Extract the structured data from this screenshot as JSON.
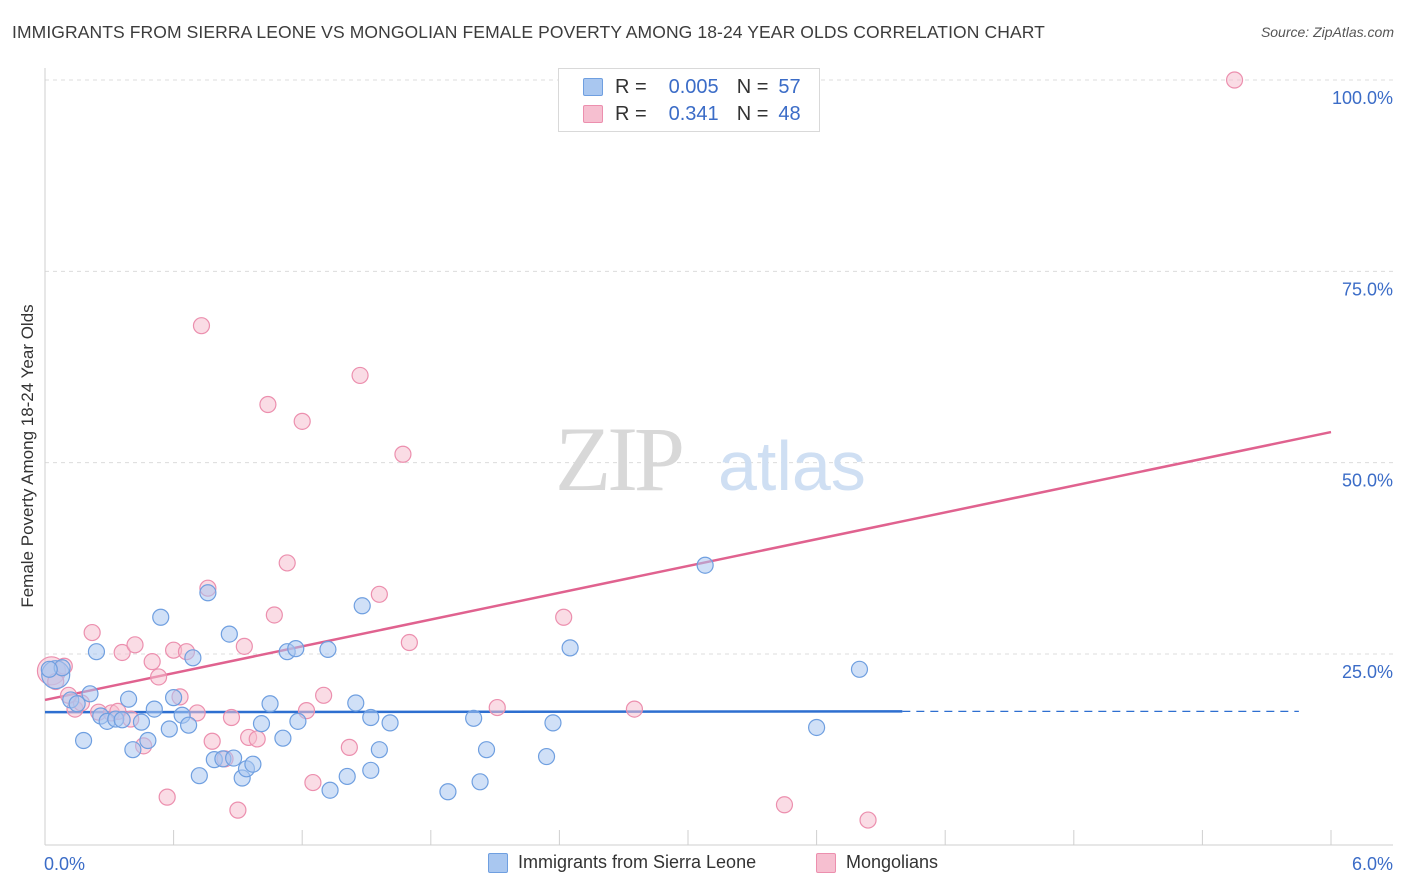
{
  "title": "IMMIGRANTS FROM SIERRA LEONE VS MONGOLIAN FEMALE POVERTY AMONG 18-24 YEAR OLDS CORRELATION CHART",
  "source": "Source: ZipAtlas.com",
  "watermark": {
    "zip": "ZIP",
    "atlas": "atlas"
  },
  "colors": {
    "blue_fill": "#a9c7f0",
    "blue_stroke": "#6f9fe0",
    "blue_line": "#2e6fd0",
    "pink_fill": "#f6bfd0",
    "pink_stroke": "#ec8fae",
    "pink_line": "#e0628f",
    "axis_label": "#3b6cc7",
    "grid": "#dcdcdc"
  },
  "legend": {
    "r_label": "R =",
    "n_label": "N =",
    "series": [
      {
        "r": "0.005",
        "n": "57"
      },
      {
        "r": "0.341",
        "n": "48"
      }
    ]
  },
  "bottom_legend": {
    "items": [
      "Immigrants from Sierra Leone",
      "Mongolians"
    ]
  },
  "chart_data": {
    "type": "scatter",
    "title": "IMMIGRANTS FROM SIERRA LEONE VS MONGOLIAN FEMALE POVERTY AMONG 18-24 YEAR OLDS CORRELATION CHART",
    "xlabel": "",
    "ylabel": "Female Poverty Among 18-24 Year Olds",
    "xlim": [
      0,
      6
    ],
    "ylim": [
      0,
      100
    ],
    "x_tick_labels": [
      "0.0%",
      "6.0%"
    ],
    "y_tick_values": [
      25,
      50,
      75,
      100
    ],
    "y_tick_labels": [
      "25.0%",
      "50.0%",
      "75.0%",
      "100.0%"
    ],
    "series": [
      {
        "name": "Immigrants from Sierra Leone",
        "r": 0.005,
        "n": 57,
        "trend": {
          "x0": 0.0,
          "y0": 17.4,
          "x1": 4.0,
          "y1": 17.5,
          "dashed_to_x": 5.85
        },
        "points": [
          {
            "x": 0.05,
            "y": 22.3,
            "big": true
          },
          {
            "x": 0.08,
            "y": 23.2
          },
          {
            "x": 0.12,
            "y": 19.0
          },
          {
            "x": 0.15,
            "y": 18.5
          },
          {
            "x": 0.18,
            "y": 13.7
          },
          {
            "x": 0.21,
            "y": 19.8
          },
          {
            "x": 0.24,
            "y": 25.3
          },
          {
            "x": 0.26,
            "y": 16.9
          },
          {
            "x": 0.29,
            "y": 16.2
          },
          {
            "x": 0.33,
            "y": 16.5
          },
          {
            "x": 0.36,
            "y": 16.4
          },
          {
            "x": 0.39,
            "y": 19.1
          },
          {
            "x": 0.41,
            "y": 12.5
          },
          {
            "x": 0.45,
            "y": 16.1
          },
          {
            "x": 0.48,
            "y": 13.7
          },
          {
            "x": 0.51,
            "y": 17.8
          },
          {
            "x": 0.54,
            "y": 29.8
          },
          {
            "x": 0.58,
            "y": 15.2
          },
          {
            "x": 0.6,
            "y": 19.3
          },
          {
            "x": 0.64,
            "y": 17.0
          },
          {
            "x": 0.67,
            "y": 15.7
          },
          {
            "x": 0.69,
            "y": 24.5
          },
          {
            "x": 0.72,
            "y": 9.1
          },
          {
            "x": 0.76,
            "y": 33.0
          },
          {
            "x": 0.79,
            "y": 11.2
          },
          {
            "x": 0.83,
            "y": 11.3
          },
          {
            "x": 0.86,
            "y": 27.6
          },
          {
            "x": 0.88,
            "y": 11.4
          },
          {
            "x": 0.92,
            "y": 8.8
          },
          {
            "x": 0.94,
            "y": 10.0
          },
          {
            "x": 0.97,
            "y": 10.6
          },
          {
            "x": 1.01,
            "y": 15.9
          },
          {
            "x": 1.05,
            "y": 18.5
          },
          {
            "x": 1.11,
            "y": 14.0
          },
          {
            "x": 1.13,
            "y": 25.3
          },
          {
            "x": 1.17,
            "y": 25.7
          },
          {
            "x": 1.18,
            "y": 16.2
          },
          {
            "x": 1.32,
            "y": 25.6
          },
          {
            "x": 1.33,
            "y": 7.2
          },
          {
            "x": 1.41,
            "y": 9.0
          },
          {
            "x": 1.45,
            "y": 18.6
          },
          {
            "x": 1.48,
            "y": 31.3
          },
          {
            "x": 1.52,
            "y": 9.8
          },
          {
            "x": 1.56,
            "y": 12.5
          },
          {
            "x": 1.52,
            "y": 16.7
          },
          {
            "x": 1.61,
            "y": 16.0
          },
          {
            "x": 1.88,
            "y": 7.0
          },
          {
            "x": 2.0,
            "y": 16.6
          },
          {
            "x": 2.03,
            "y": 8.3
          },
          {
            "x": 2.06,
            "y": 12.5
          },
          {
            "x": 2.34,
            "y": 11.6
          },
          {
            "x": 2.37,
            "y": 16.0
          },
          {
            "x": 2.45,
            "y": 25.8
          },
          {
            "x": 3.08,
            "y": 36.6
          },
          {
            "x": 3.6,
            "y": 15.4
          },
          {
            "x": 3.8,
            "y": 23.0
          },
          {
            "x": 0.02,
            "y": 23.0
          }
        ]
      },
      {
        "name": "Mongolians",
        "r": 0.341,
        "n": 48,
        "trend": {
          "x0": 0.0,
          "y0": 19.0,
          "x1": 6.0,
          "y1": 54.0
        },
        "points": [
          {
            "x": 0.03,
            "y": 22.8,
            "big": true
          },
          {
            "x": 0.09,
            "y": 23.4
          },
          {
            "x": 0.14,
            "y": 17.8
          },
          {
            "x": 0.17,
            "y": 18.6
          },
          {
            "x": 0.22,
            "y": 27.8
          },
          {
            "x": 0.25,
            "y": 17.4
          },
          {
            "x": 0.31,
            "y": 17.3
          },
          {
            "x": 0.34,
            "y": 17.5
          },
          {
            "x": 0.36,
            "y": 25.2
          },
          {
            "x": 0.42,
            "y": 26.2
          },
          {
            "x": 0.46,
            "y": 13.0
          },
          {
            "x": 0.5,
            "y": 24.0
          },
          {
            "x": 0.53,
            "y": 22.0
          },
          {
            "x": 0.57,
            "y": 6.3
          },
          {
            "x": 0.6,
            "y": 25.5
          },
          {
            "x": 0.63,
            "y": 19.4
          },
          {
            "x": 0.66,
            "y": 25.3
          },
          {
            "x": 0.71,
            "y": 17.3
          },
          {
            "x": 0.73,
            "y": 67.9
          },
          {
            "x": 0.76,
            "y": 33.6
          },
          {
            "x": 0.78,
            "y": 13.6
          },
          {
            "x": 0.84,
            "y": 11.3
          },
          {
            "x": 0.87,
            "y": 16.7
          },
          {
            "x": 0.9,
            "y": 4.6
          },
          {
            "x": 0.93,
            "y": 26.0
          },
          {
            "x": 0.95,
            "y": 14.1
          },
          {
            "x": 0.99,
            "y": 13.9
          },
          {
            "x": 1.04,
            "y": 57.6
          },
          {
            "x": 1.07,
            "y": 30.1
          },
          {
            "x": 1.13,
            "y": 36.9
          },
          {
            "x": 1.2,
            "y": 55.4
          },
          {
            "x": 1.22,
            "y": 17.6
          },
          {
            "x": 1.25,
            "y": 8.2
          },
          {
            "x": 1.3,
            "y": 19.6
          },
          {
            "x": 1.42,
            "y": 12.8
          },
          {
            "x": 1.47,
            "y": 61.4
          },
          {
            "x": 1.56,
            "y": 32.8
          },
          {
            "x": 1.67,
            "y": 51.1
          },
          {
            "x": 1.7,
            "y": 26.5
          },
          {
            "x": 2.11,
            "y": 18.0
          },
          {
            "x": 2.42,
            "y": 29.8
          },
          {
            "x": 2.75,
            "y": 17.8
          },
          {
            "x": 3.45,
            "y": 5.3
          },
          {
            "x": 3.84,
            "y": 3.3
          },
          {
            "x": 5.55,
            "y": 100.0
          },
          {
            "x": 0.11,
            "y": 19.6
          },
          {
            "x": 0.4,
            "y": 16.5
          },
          {
            "x": 0.05,
            "y": 21.4
          }
        ]
      }
    ]
  }
}
